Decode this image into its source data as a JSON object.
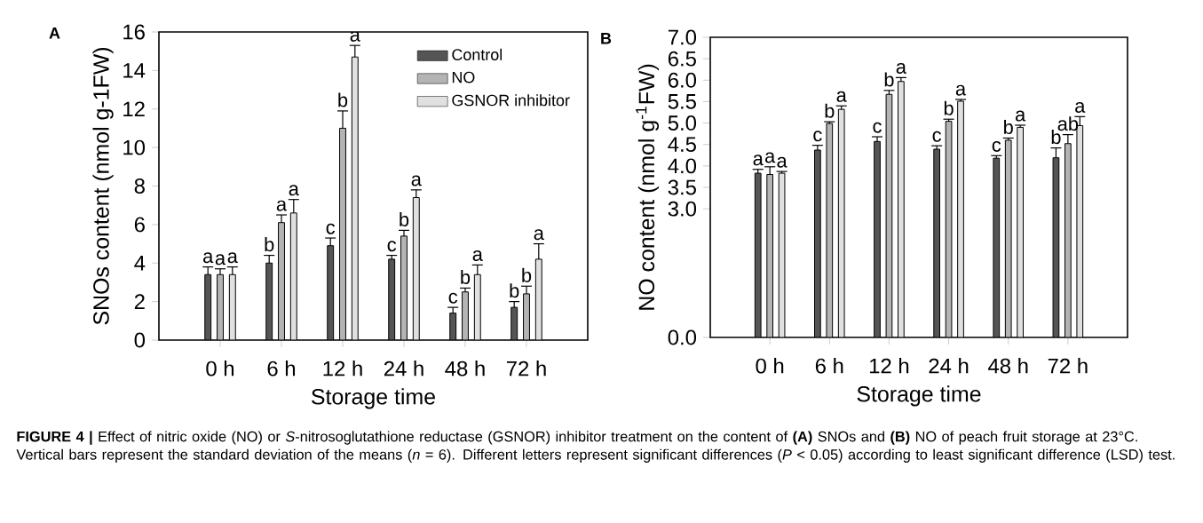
{
  "chart_data": [
    {
      "type": "bar",
      "title": "A",
      "xlabel": "Storage time",
      "ylabel": "SNOs content (nmol g-1FW)",
      "categories": [
        "0 h",
        "6 h",
        "12 h",
        "24 h",
        "48 h",
        "72 h"
      ],
      "series": [
        {
          "name": "Control",
          "color": "#555555",
          "values": [
            3.4,
            4.0,
            4.9,
            4.2,
            1.4,
            1.7
          ],
          "errors": [
            0.4,
            0.4,
            0.4,
            0.2,
            0.3,
            0.3
          ],
          "value_labels": [
            "a",
            "b",
            "c",
            "c",
            "c",
            "b"
          ]
        },
        {
          "name": "NO",
          "color": "#b4b4b4",
          "values": [
            3.4,
            6.1,
            11.0,
            5.4,
            2.5,
            2.4
          ],
          "errors": [
            0.3,
            0.4,
            0.9,
            0.3,
            0.2,
            0.4
          ],
          "value_labels": [
            "a",
            "a",
            "b",
            "b",
            "b",
            "b"
          ]
        },
        {
          "name": "GSNOR inhibitor",
          "color": "#e0e0e0",
          "values": [
            3.4,
            6.6,
            14.7,
            7.4,
            3.4,
            4.2
          ],
          "errors": [
            0.4,
            0.7,
            0.6,
            0.4,
            0.5,
            0.8
          ],
          "value_labels": [
            "a",
            "a",
            "a",
            "a",
            "a",
            "a"
          ]
        }
      ],
      "ylim": [
        0,
        16
      ],
      "yticks": [
        0,
        2,
        4,
        6,
        8,
        10,
        12,
        14,
        16
      ],
      "legend": "top right",
      "annotations": [
        "**FIGURE 4 |** Effect of nitric oxide (NO) or *S*-nitrosoglutathione reductase (GSNOR) inhibitor treatment on the content of **(A)** SNOs and **(B)** NO of peach fruit storage at 23°C. Vertical bars represent the standard deviation of the means (*n* = 6). Different letters represent significant differences (*P* < 0.05) according to least significant difference (LSD) test."
      ]
    },
    {
      "type": "bar",
      "title": "B",
      "xlabel": "Storage time",
      "ylabel": "NO content (nmol g$^{-1}$FW)",
      "categories": [
        "0 h",
        "6 h",
        "12 h",
        "24 h",
        "48 h",
        "72 h"
      ],
      "series": [
        {
          "color": "#555555",
          "values": [
            3.83,
            4.37,
            4.57,
            4.39,
            4.18,
            4.19
          ],
          "errors": [
            0.09,
            0.11,
            0.11,
            0.08,
            0.06,
            0.23
          ],
          "value_labels": [
            "a",
            "c",
            "c",
            "c",
            "c",
            "b"
          ]
        },
        {
          "color": "#b4b4b4",
          "values": [
            3.8,
            4.99,
            5.67,
            5.04,
            4.6,
            4.52
          ],
          "errors": [
            0.18,
            0.04,
            0.09,
            0.05,
            0.05,
            0.21
          ],
          "value_labels": [
            "a",
            "b",
            "b",
            "b",
            "b",
            "ab"
          ]
        },
        {
          "color": "#e0e0e0",
          "values": [
            3.83,
            5.32,
            5.97,
            5.51,
            4.9,
            4.94
          ],
          "errors": [
            0.04,
            0.08,
            0.09,
            0.04,
            0.05,
            0.21
          ],
          "value_labels": [
            "a",
            "a",
            "a",
            "a",
            "a",
            "a"
          ]
        }
      ],
      "ylim": [
        0,
        7
      ],
      "yticks": [
        {
          "value": 0,
          "label": "0.0"
        },
        {
          "value": 3,
          "label": "3.0"
        },
        {
          "value": 3.5,
          "label": "3.5"
        },
        {
          "value": 4,
          "label": "4.0"
        },
        {
          "value": 4.5,
          "label": "4.5"
        },
        {
          "value": 5,
          "label": "5.0"
        },
        {
          "value": 5.5,
          "label": "5.5"
        },
        {
          "value": 6,
          "label": "6.0"
        },
        {
          "value": 6.5,
          "label": "6.5"
        },
        {
          "value": 7,
          "label": "7.0"
        }
      ]
    }
  ]
}
